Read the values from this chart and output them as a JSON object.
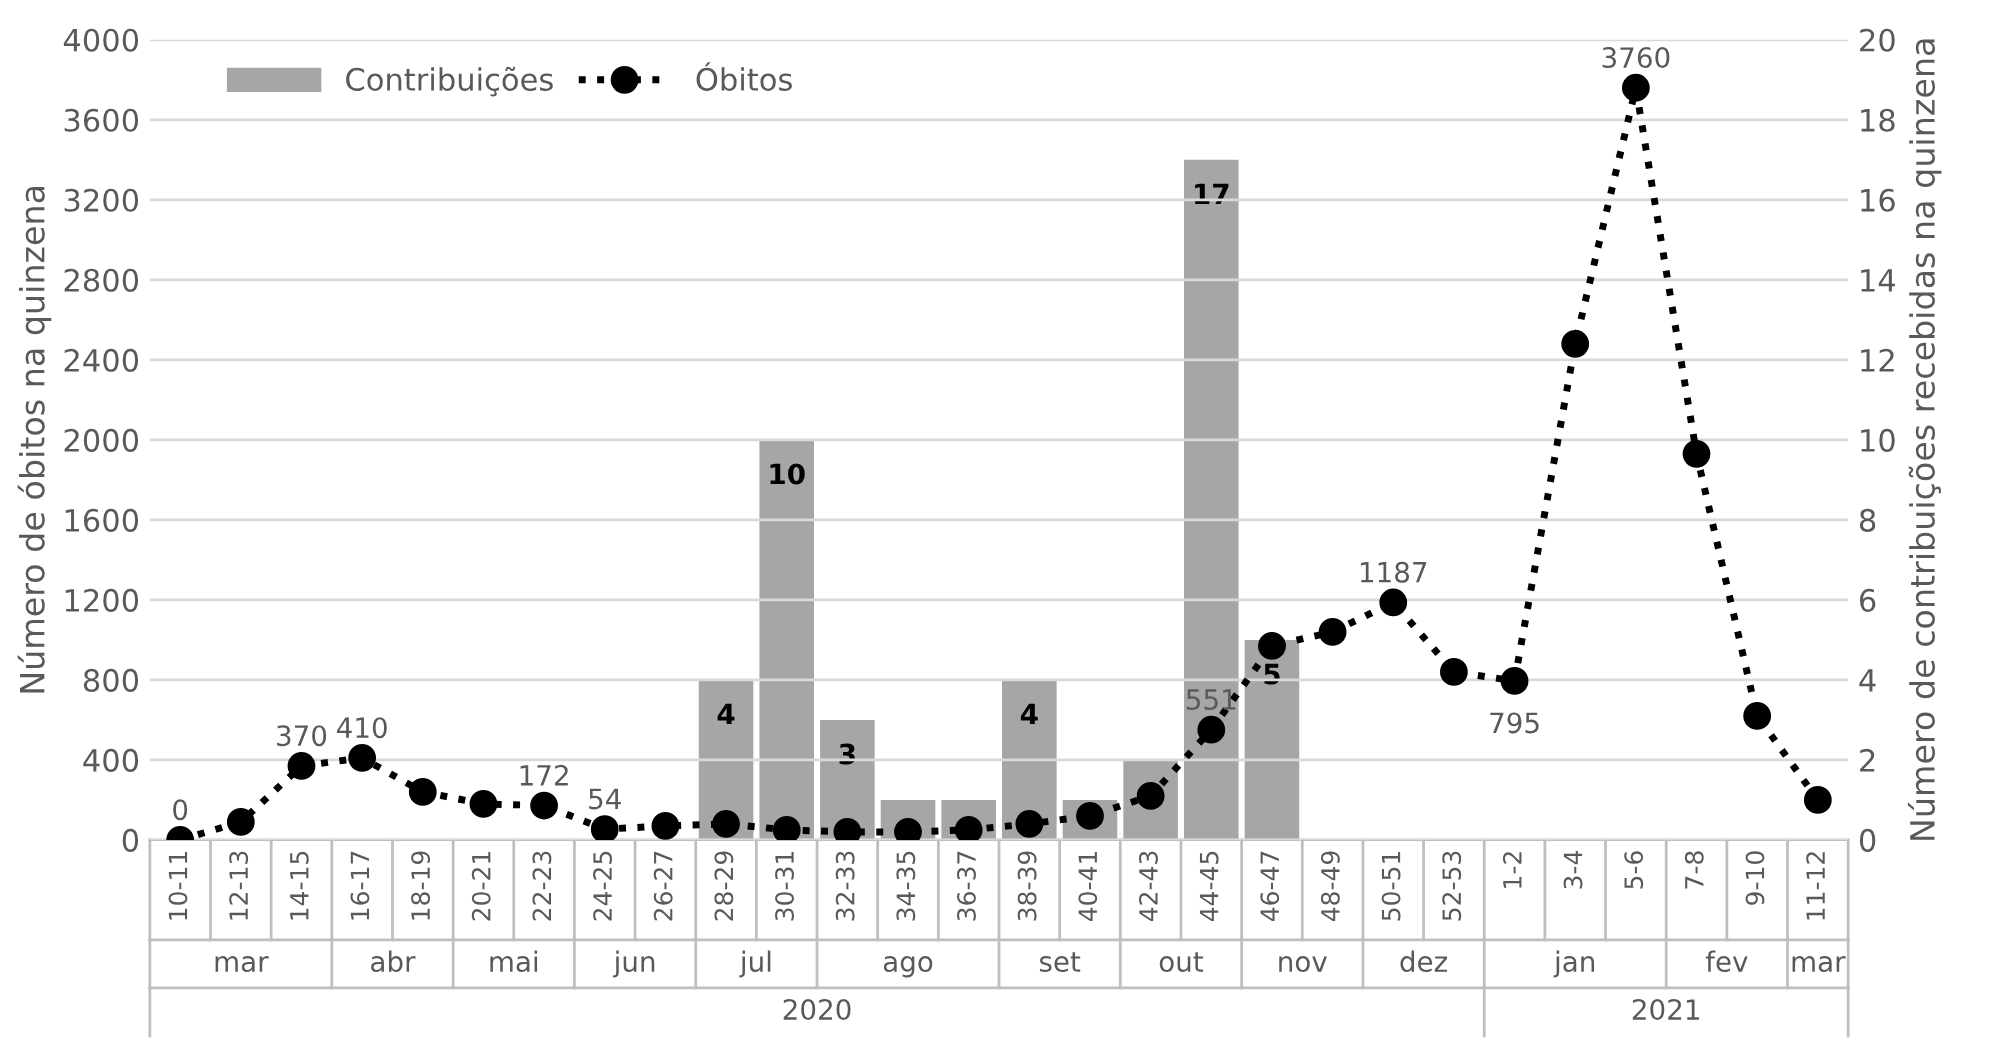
{
  "chart_data": {
    "type": "bar",
    "categories": [
      "10-11",
      "12-13",
      "14-15",
      "16-17",
      "18-19",
      "20-21",
      "22-23",
      "24-25",
      "26-27",
      "28-29",
      "30-31",
      "32-33",
      "34-35",
      "36-37",
      "38-39",
      "40-41",
      "42-43",
      "44-45",
      "46-47",
      "48-49",
      "50-51",
      "52-53",
      "1-2",
      "3-4",
      "5-6",
      "7-8",
      "9-10",
      "11-12"
    ],
    "series": [
      {
        "name": "Contribuições",
        "axis": "y2",
        "color": "#a6a6a6",
        "values": [
          null,
          null,
          null,
          null,
          null,
          null,
          null,
          null,
          null,
          4,
          10,
          3,
          1,
          1,
          4,
          1,
          2,
          17,
          5,
          null,
          null,
          null,
          null,
          null,
          null,
          null,
          null,
          null
        ],
        "value_labels": [
          null,
          null,
          null,
          null,
          null,
          null,
          null,
          null,
          null,
          "4",
          "10",
          "3",
          null,
          null,
          "4",
          null,
          null,
          "17",
          "5",
          null,
          null,
          null,
          null,
          null,
          null,
          null,
          null,
          null
        ]
      },
      {
        "name": "Óbitos",
        "type": "line",
        "axis": "y",
        "color": "#000000",
        "marker": "circle",
        "line_style": "dotted",
        "values": [
          0,
          90,
          370,
          410,
          240,
          180,
          172,
          54,
          70,
          80,
          50,
          40,
          40,
          50,
          80,
          120,
          220,
          551,
          970,
          1040,
          1187,
          840,
          795,
          2480,
          3760,
          1930,
          620,
          200
        ],
        "value_labels": [
          "0",
          null,
          "370",
          "410",
          null,
          null,
          "172",
          "54",
          null,
          null,
          null,
          null,
          null,
          null,
          null,
          null,
          null,
          "551",
          null,
          null,
          "1187",
          null,
          "795",
          null,
          "3760",
          null,
          null,
          null
        ]
      }
    ],
    "ylabel": "Número de óbitos na quinzena",
    "y2label": "Número de contribuições recebidas na quinzena",
    "ylim": [
      0,
      4000
    ],
    "yticks": [
      0,
      400,
      800,
      1200,
      1600,
      2000,
      2400,
      2800,
      3200,
      3600,
      4000
    ],
    "y2lim": [
      0,
      20
    ],
    "y2ticks": [
      0,
      2,
      4,
      6,
      8,
      10,
      12,
      14,
      16,
      18,
      20
    ],
    "grid": "y",
    "legend": "top left",
    "annotations": [
      "mar",
      "abr",
      "mai",
      "jun",
      "jul",
      "ago",
      "set",
      "out",
      "nov",
      "dez",
      "jan",
      "fev",
      "mar",
      "2020",
      "2021"
    ]
  }
}
